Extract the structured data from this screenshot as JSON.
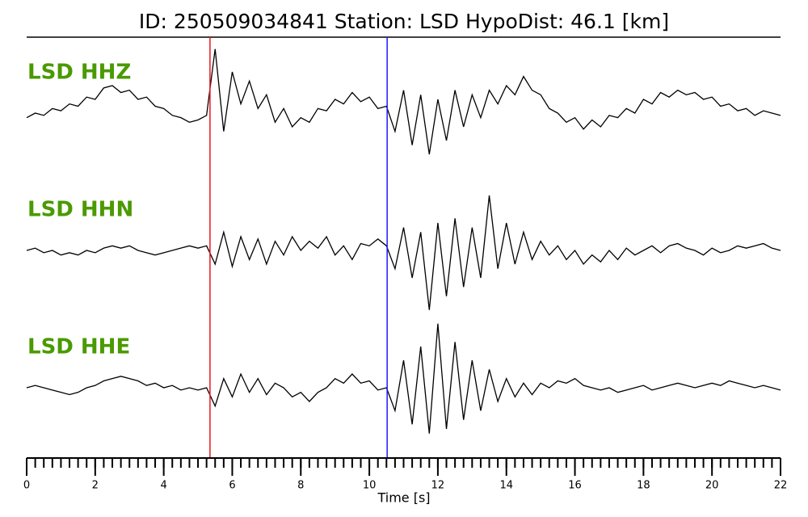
{
  "chart_data": {
    "type": "seismogram",
    "title": "ID: 250509034841   Station: LSD   HypoDist:    46.1 [km]",
    "xlabel": "Time [s]",
    "xlim": [
      0,
      22
    ],
    "xticks": [
      0,
      2,
      4,
      6,
      8,
      10,
      12,
      14,
      16,
      18,
      20,
      22
    ],
    "xminor_step": 0.25,
    "ylim": [
      -1.5,
      1.5
    ],
    "label_color": "#4a9a00",
    "markers": [
      {
        "x": 5.35,
        "color": "#e8191c"
      },
      {
        "x": 10.52,
        "color": "#1a1aff"
      }
    ],
    "x": [
      0,
      0.25,
      0.5,
      0.75,
      1,
      1.25,
      1.5,
      1.75,
      2,
      2.25,
      2.5,
      2.75,
      3,
      3.25,
      3.5,
      3.75,
      4,
      4.25,
      4.5,
      4.75,
      5,
      5.25,
      5.5,
      5.75,
      6,
      6.25,
      6.5,
      6.75,
      7,
      7.25,
      7.5,
      7.75,
      8,
      8.25,
      8.5,
      8.75,
      9,
      9.25,
      9.5,
      9.75,
      10,
      10.25,
      10.5,
      10.75,
      11,
      11.25,
      11.5,
      11.75,
      12,
      12.25,
      12.5,
      12.75,
      13,
      13.25,
      13.5,
      13.75,
      14,
      14.25,
      14.5,
      14.75,
      15,
      15.25,
      15.5,
      15.75,
      16,
      16.25,
      16.5,
      16.75,
      17,
      17.25,
      17.5,
      17.75,
      18,
      18.25,
      18.5,
      18.75,
      19,
      19.25,
      19.5,
      19.75,
      20,
      20.25,
      20.5,
      20.75,
      21,
      21.25,
      21.5,
      21.75,
      22
    ],
    "series": [
      {
        "name": "LSD HHZ",
        "color": "#000000",
        "values": [
          -0.1,
          0.0,
          -0.05,
          0.1,
          0.05,
          0.2,
          0.15,
          0.35,
          0.3,
          0.55,
          0.6,
          0.45,
          0.5,
          0.3,
          0.35,
          0.15,
          0.1,
          -0.05,
          -0.1,
          -0.2,
          -0.15,
          -0.05,
          1.4,
          -0.4,
          0.9,
          0.2,
          0.7,
          0.1,
          0.4,
          -0.2,
          0.1,
          -0.3,
          -0.1,
          -0.2,
          0.1,
          0.05,
          0.3,
          0.2,
          0.45,
          0.25,
          0.35,
          0.1,
          0.15,
          -0.4,
          0.5,
          -0.7,
          0.4,
          -0.9,
          0.3,
          -0.6,
          0.5,
          -0.3,
          0.4,
          -0.1,
          0.5,
          0.2,
          0.6,
          0.4,
          0.8,
          0.5,
          0.4,
          0.1,
          0.0,
          -0.2,
          -0.1,
          -0.35,
          -0.15,
          -0.3,
          -0.05,
          -0.1,
          0.1,
          0.0,
          0.3,
          0.2,
          0.45,
          0.35,
          0.5,
          0.4,
          0.45,
          0.3,
          0.35,
          0.15,
          0.2,
          0.05,
          0.1,
          -0.05,
          0.05,
          0.0,
          -0.05
        ]
      },
      {
        "name": "LSD HHN",
        "color": "#000000",
        "values": [
          0.0,
          0.05,
          -0.05,
          0.0,
          -0.1,
          -0.05,
          -0.1,
          0.0,
          -0.05,
          0.05,
          0.1,
          0.05,
          0.1,
          0.0,
          -0.05,
          -0.1,
          -0.05,
          0.0,
          0.05,
          0.1,
          0.05,
          0.1,
          -0.3,
          0.4,
          -0.35,
          0.3,
          -0.2,
          0.25,
          -0.3,
          0.2,
          -0.1,
          0.3,
          0.0,
          0.2,
          0.05,
          0.3,
          -0.1,
          0.1,
          -0.2,
          0.15,
          0.1,
          0.25,
          0.1,
          -0.4,
          0.5,
          -0.6,
          0.4,
          -1.3,
          0.6,
          -1.0,
          0.7,
          -0.8,
          0.5,
          -0.6,
          1.2,
          -0.4,
          0.6,
          -0.3,
          0.4,
          -0.2,
          0.2,
          -0.1,
          0.1,
          -0.2,
          0.0,
          -0.3,
          -0.1,
          -0.25,
          0.0,
          -0.2,
          0.05,
          -0.1,
          0.0,
          0.1,
          -0.05,
          0.1,
          0.15,
          0.05,
          0.0,
          -0.1,
          0.05,
          -0.05,
          0.0,
          0.1,
          0.05,
          0.1,
          0.15,
          0.05,
          0.0
        ]
      },
      {
        "name": "LSD HHE",
        "color": "#000000",
        "values": [
          0.0,
          0.05,
          0.0,
          -0.05,
          -0.1,
          -0.15,
          -0.1,
          0.0,
          0.05,
          0.15,
          0.2,
          0.25,
          0.2,
          0.15,
          0.05,
          0.1,
          0.0,
          0.05,
          -0.05,
          0.0,
          -0.05,
          0.0,
          -0.4,
          0.2,
          -0.2,
          0.3,
          -0.1,
          0.2,
          -0.15,
          0.1,
          0.0,
          -0.2,
          -0.1,
          -0.3,
          -0.1,
          0.0,
          0.2,
          0.1,
          0.3,
          0.1,
          0.15,
          -0.05,
          0.0,
          -0.5,
          0.6,
          -0.8,
          0.9,
          -1.0,
          1.4,
          -0.9,
          1.0,
          -0.7,
          0.6,
          -0.5,
          0.4,
          -0.3,
          0.2,
          -0.2,
          0.1,
          -0.15,
          0.1,
          0.0,
          0.15,
          0.1,
          0.2,
          0.05,
          0.0,
          -0.05,
          0.0,
          -0.1,
          -0.05,
          0.0,
          0.05,
          -0.05,
          0.0,
          0.05,
          0.1,
          0.05,
          0.0,
          0.05,
          0.1,
          0.05,
          0.15,
          0.1,
          0.05,
          0.0,
          0.05,
          0.0,
          -0.05
        ]
      }
    ]
  }
}
